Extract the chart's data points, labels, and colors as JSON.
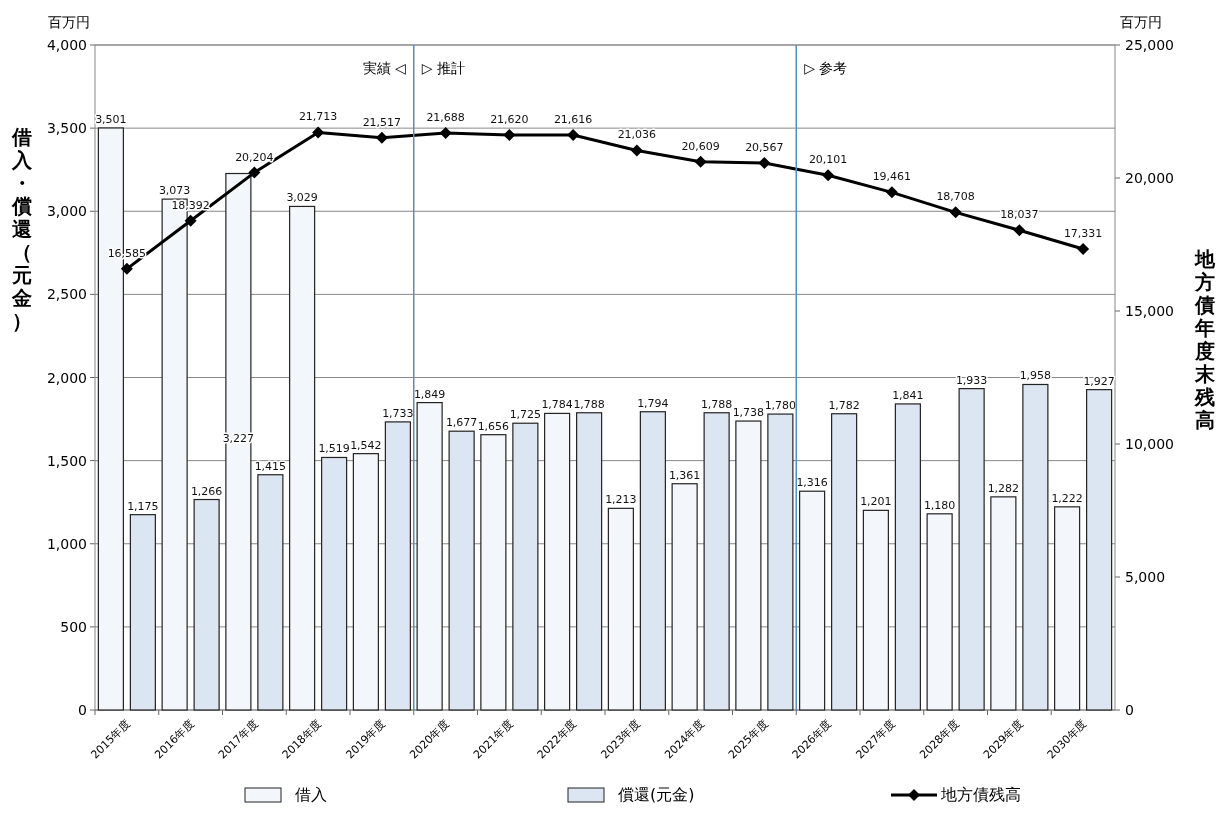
{
  "chart_data": {
    "type": "bar",
    "ylabel": "借入・償還（元金）",
    "y2label": "地方債年度末残高",
    "categories": [
      "2015年度",
      "2016年度",
      "2017年度",
      "2018年度",
      "2019年度",
      "2020年度",
      "2021年度",
      "2022年度",
      "2023年度",
      "2024年度",
      "2025年度",
      "2026年度",
      "2027年度",
      "2028年度",
      "2029年度",
      "2030年度"
    ],
    "series": [
      {
        "name": "借入",
        "color": "#f3f7fb",
        "values": [
          3501,
          3073,
          3227,
          3029,
          1542,
          1849,
          1656,
          1784,
          1213,
          1361,
          1738,
          1316,
          1201,
          1180,
          1282,
          1222
        ],
        "value_labels": [
          "3,501",
          "3,073",
          "3,227",
          "3,029",
          "1,542",
          "1,849",
          "1,656",
          "1,784",
          "1,213",
          "1,361",
          "1,738",
          "1,316",
          "1,201",
          "1,180",
          "1,282",
          "1,222"
        ]
      },
      {
        "name": "償還(元金)",
        "color": "#dce6f2",
        "values": [
          1175,
          1266,
          1415,
          1519,
          1733,
          1677,
          1725,
          1788,
          1794,
          1788,
          1780,
          1782,
          1841,
          1933,
          1958,
          1927
        ],
        "value_labels": [
          "1,175",
          "1,266",
          "1,415",
          "1,519",
          "1,733",
          "1,677",
          "1,725",
          "1,788",
          "1,794",
          "1,788",
          "1,780",
          "1,782",
          "1,841",
          "1,933",
          "1,958",
          "1,927"
        ]
      },
      {
        "name": "地方債残高",
        "type": "line",
        "axis": "y2",
        "color": "#000000",
        "marker": "diamond",
        "values": [
          16585,
          18392,
          20204,
          21713,
          21517,
          21688,
          21620,
          21616,
          21036,
          20609,
          20567,
          20101,
          19461,
          18708,
          18037,
          17331
        ],
        "value_labels": [
          "16,585",
          "18,392",
          "20,204",
          "21,713",
          "21,517",
          "21,688",
          "21,620",
          "21,616",
          "21,036",
          "20,609",
          "20,567",
          "20,101",
          "19,461",
          "18,708",
          "18,037",
          "17,331"
        ]
      }
    ],
    "ylim": [
      0,
      4000
    ],
    "yticks": [
      0,
      {
        "value": 500,
        "label": "500"
      },
      {
        "value": 1000,
        "label": "1,000"
      },
      {
        "value": 1500,
        "label": "1,500"
      },
      {
        "value": 2000,
        "label": "2,000"
      },
      {
        "value": 2500,
        "label": "2,500"
      },
      {
        "value": 3000,
        "label": "3,000"
      },
      {
        "value": 3500,
        "label": "3,500"
      },
      {
        "value": 4000,
        "label": "4,000"
      }
    ],
    "y2lim": [
      0,
      25000
    ],
    "y2ticks": [
      0,
      {
        "value": 5000,
        "label": "5,000"
      },
      {
        "value": 10000,
        "label": "10,000"
      },
      {
        "value": 15000,
        "label": "15,000"
      },
      {
        "value": 20000,
        "label": "20,000"
      },
      {
        "value": 25000,
        "label": "25,000"
      }
    ],
    "ref_lines": [
      {
        "axis": "x",
        "value": "2020年度",
        "color": "#5b8cc0"
      },
      {
        "axis": "x",
        "value": "2026年度",
        "color": "#5b8cc0"
      }
    ],
    "annotations": [
      "百万円",
      "百万円",
      "実績 ◁",
      "▷ 推計",
      "▷ 参考"
    ],
    "grid": "y",
    "legend": "bottom"
  }
}
